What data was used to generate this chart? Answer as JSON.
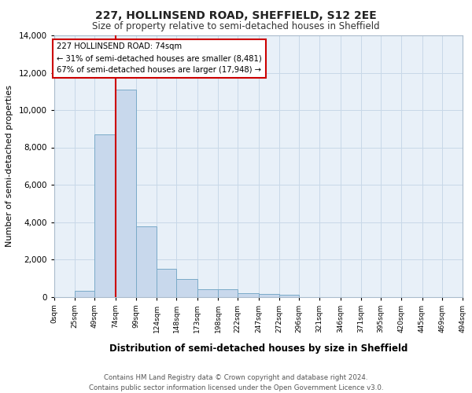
{
  "title1": "227, HOLLINSEND ROAD, SHEFFIELD, S12 2EE",
  "title2": "Size of property relative to semi-detached houses in Sheffield",
  "xlabel": "Distribution of semi-detached houses by size in Sheffield",
  "ylabel": "Number of semi-detached properties",
  "footer": "Contains HM Land Registry data © Crown copyright and database right 2024.\nContains public sector information licensed under the Open Government Licence v3.0.",
  "bin_edges": [
    0,
    25,
    49,
    74,
    99,
    124,
    148,
    173,
    198,
    222,
    247,
    272,
    296,
    321,
    346,
    371,
    395,
    420,
    445,
    469,
    494
  ],
  "bar_heights": [
    0,
    300,
    8700,
    11100,
    3750,
    1500,
    950,
    400,
    400,
    200,
    150,
    100,
    0,
    0,
    0,
    0,
    0,
    0,
    0,
    0
  ],
  "bar_color": "#c8d8ec",
  "bar_edge_color": "#7aaac8",
  "red_line_x": 74,
  "ylim": [
    0,
    14000
  ],
  "yticks": [
    0,
    2000,
    4000,
    6000,
    8000,
    10000,
    12000,
    14000
  ],
  "annotation_title": "227 HOLLINSEND ROAD: 74sqm",
  "annotation_line2": "← 31% of semi-detached houses are smaller (8,481)",
  "annotation_line3": "67% of semi-detached houses are larger (17,948) →",
  "annotation_box_color": "#cc0000",
  "grid_color": "#c8d8e8",
  "plot_bg_color": "#e8f0f8",
  "fig_bg_color": "#ffffff",
  "tick_labels": [
    "0sqm",
    "25sqm",
    "49sqm",
    "74sqm",
    "99sqm",
    "124sqm",
    "148sqm",
    "173sqm",
    "198sqm",
    "222sqm",
    "247sqm",
    "272sqm",
    "296sqm",
    "321sqm",
    "346sqm",
    "371sqm",
    "395sqm",
    "420sqm",
    "445sqm",
    "469sqm",
    "494sqm"
  ]
}
